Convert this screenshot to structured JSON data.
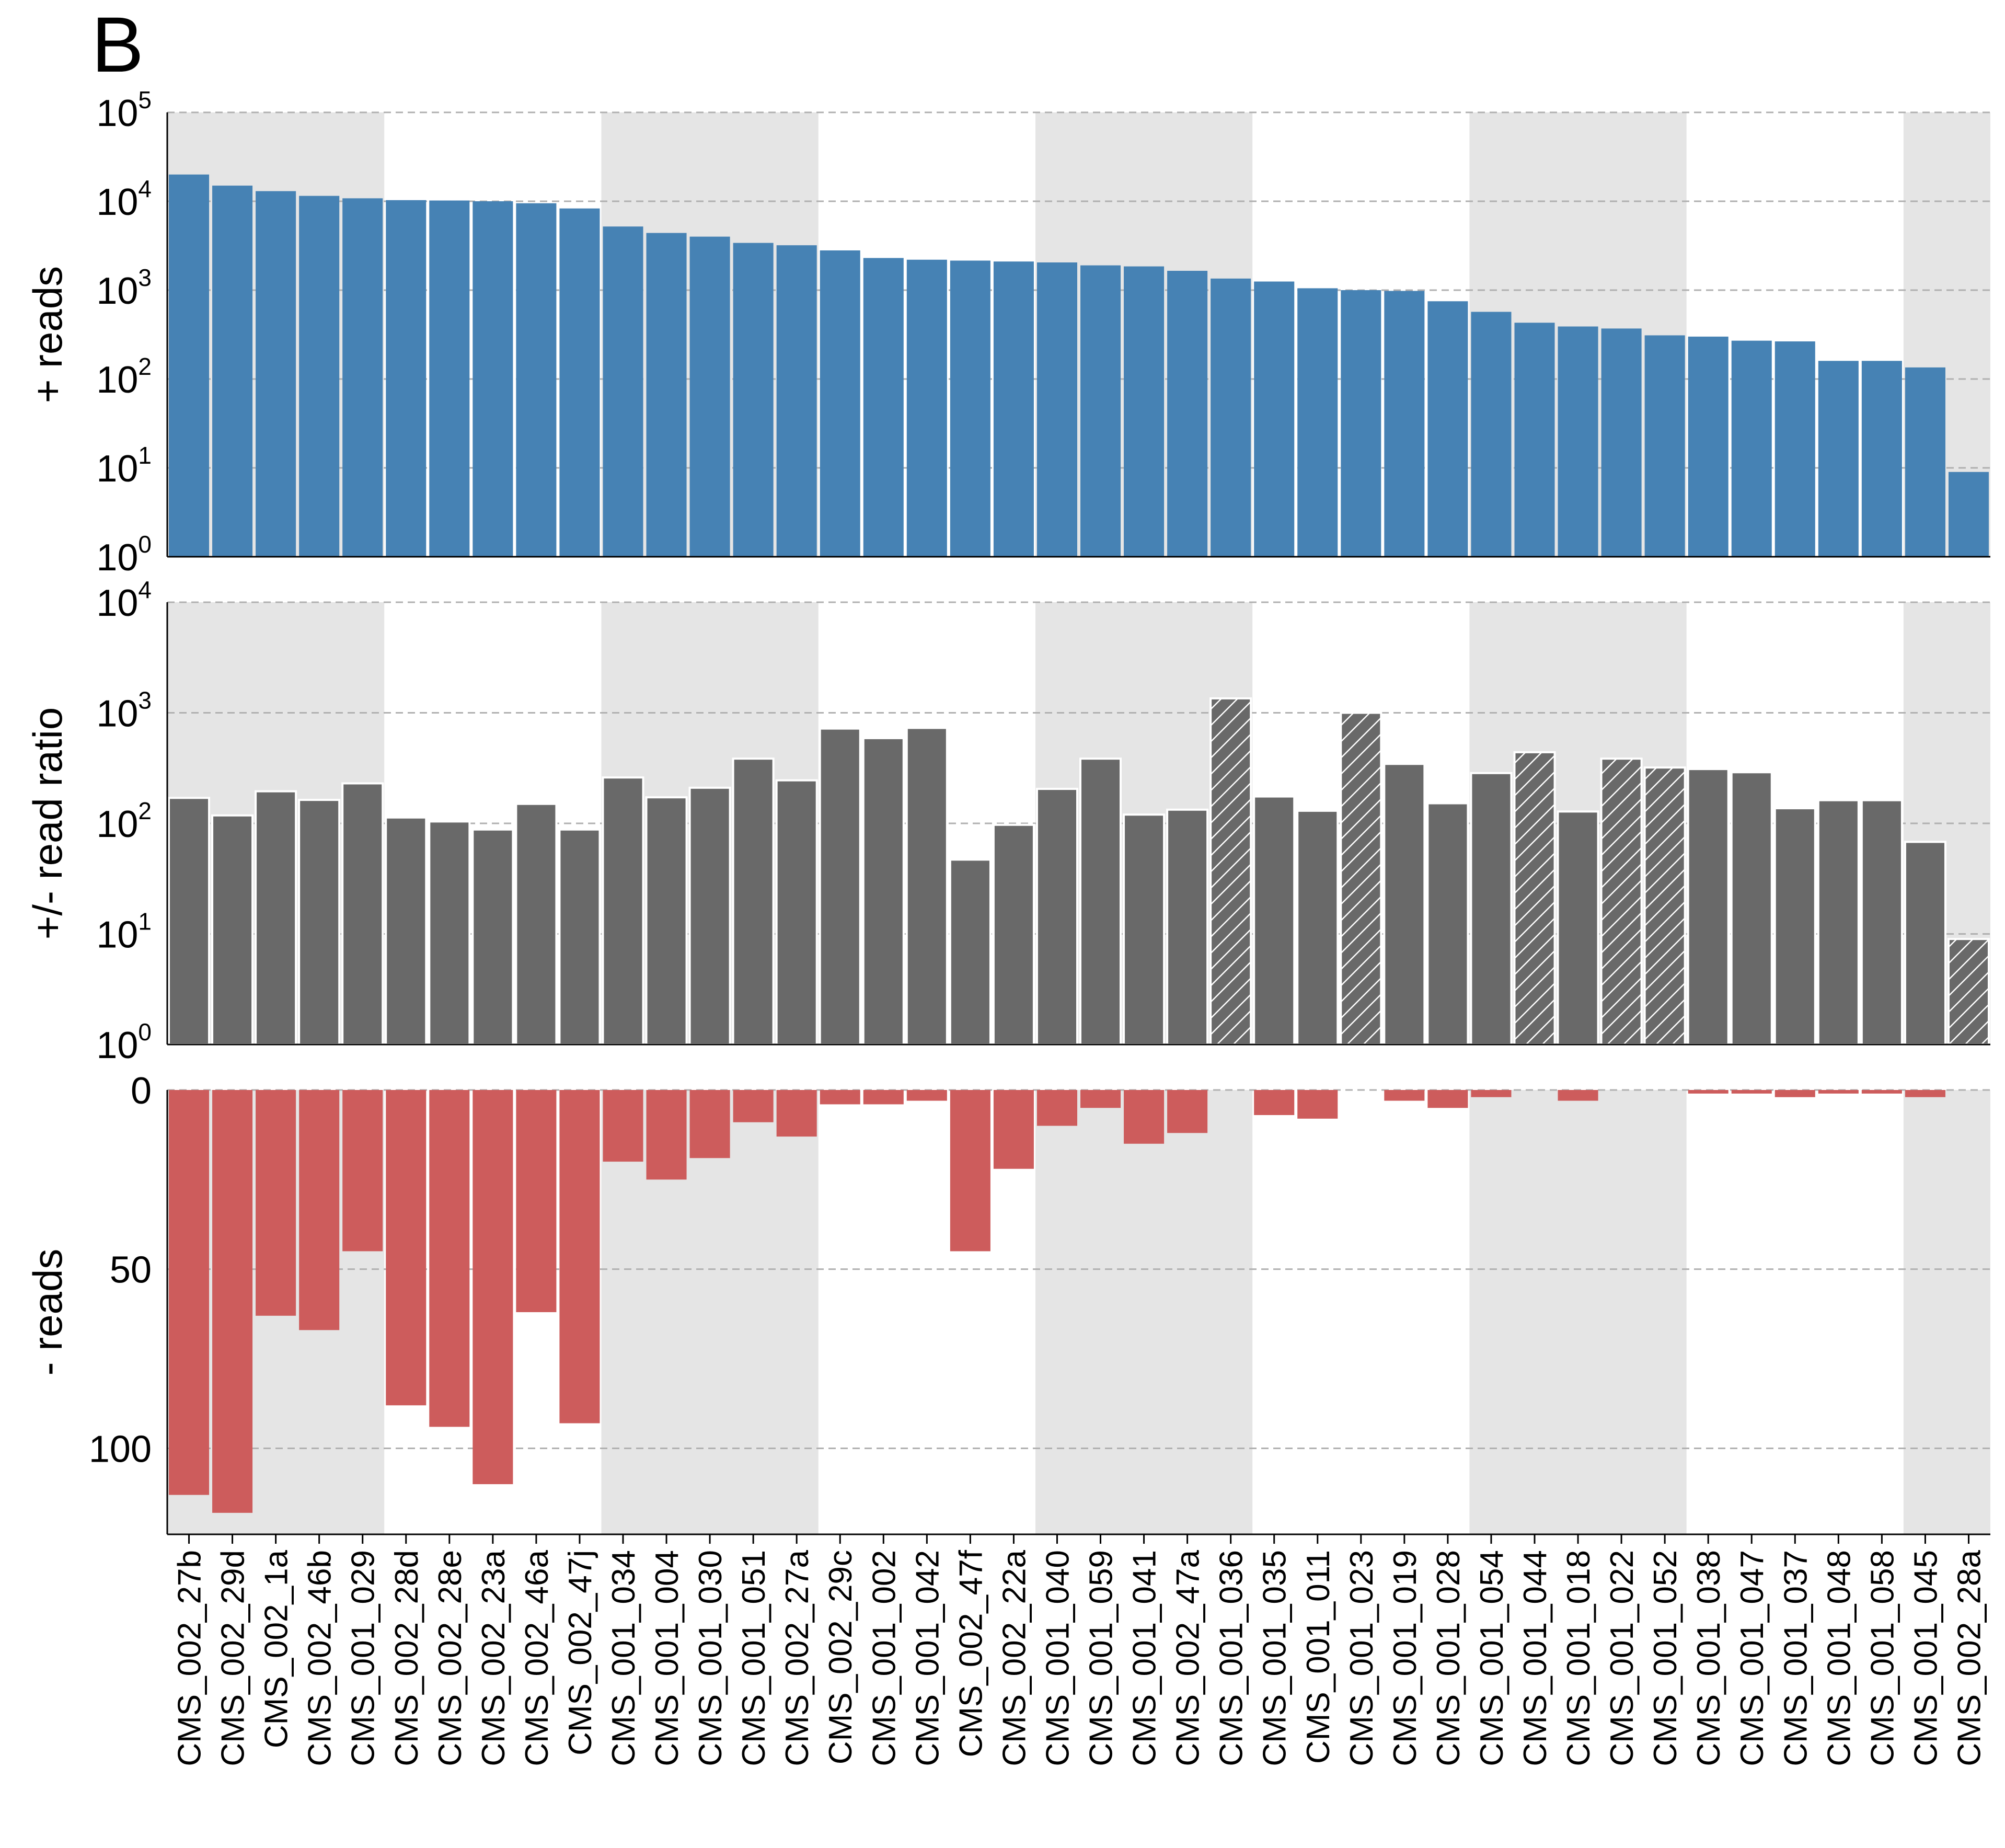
{
  "panel_label": "B",
  "colors": {
    "pos": "#4682b4",
    "ratio": "#696969",
    "neg": "#cd5c5c",
    "band": "#e5e5e5",
    "grid": "#b0b0b0"
  },
  "chart_data": [
    {
      "type": "bar",
      "ylabel": "+ reads",
      "yscale": "log",
      "ylim": [
        1,
        100000
      ],
      "ytick_base": "10",
      "ytick_exponents": [
        "0",
        "1",
        "2",
        "3",
        "4",
        "5"
      ],
      "grid": true,
      "categories": [
        "CMS_002_27b",
        "CMS_002_29d",
        "CMS_002_1a",
        "CMS_002_46b",
        "CMS_001_029",
        "CMS_002_28d",
        "CMS_002_28e",
        "CMS_002_23a",
        "CMS_002_46a",
        "CMS_002_47j",
        "CMS_001_034",
        "CMS_001_004",
        "CMS_001_030",
        "CMS_001_051",
        "CMS_002_27a",
        "CMS_002_29c",
        "CMS_001_002",
        "CMS_001_042",
        "CMS_002_47f",
        "CMS_002_22a",
        "CMS_001_040",
        "CMS_001_059",
        "CMS_001_041",
        "CMS_002_47a",
        "CMS_001_036",
        "CMS_001_035",
        "CMS_001_011",
        "CMS_001_023",
        "CMS_001_019",
        "CMS_001_028",
        "CMS_001_054",
        "CMS_001_044",
        "CMS_001_018",
        "CMS_001_022",
        "CMS_001_052",
        "CMS_001_038",
        "CMS_001_047",
        "CMS_001_037",
        "CMS_001_048",
        "CMS_001_058",
        "CMS_001_045",
        "CMS_002_28a"
      ],
      "values": [
        20000,
        15000,
        13000,
        11500,
        10800,
        10300,
        10200,
        10000,
        9500,
        8300,
        5200,
        4400,
        4000,
        3400,
        3200,
        2800,
        2300,
        2200,
        2150,
        2100,
        2050,
        1900,
        1850,
        1650,
        1350,
        1250,
        1050,
        1000,
        980,
        750,
        570,
        430,
        390,
        370,
        310,
        300,
        270,
        265,
        160,
        160,
        135,
        9
      ]
    },
    {
      "type": "bar",
      "ylabel": "+/- read ratio",
      "yscale": "log",
      "ylim": [
        1,
        10000
      ],
      "ytick_base": "10",
      "ytick_exponents": [
        "0",
        "1",
        "2",
        "3",
        "4"
      ],
      "grid": true,
      "note_hatched": "hatched bars have zero negative reads",
      "values": [
        170,
        118,
        195,
        163,
        230,
        113,
        104,
        88,
        150,
        88,
        260,
        172,
        210,
        385,
        245,
        720,
        590,
        730,
        47,
        97,
        205,
        385,
        120,
        133,
        1350,
        175,
        130,
        1000,
        345,
        152,
        285,
        440,
        128,
        385,
        320,
        310,
        290,
        137,
        162,
        162,
        68,
        9
      ],
      "hatched": [
        false,
        false,
        false,
        false,
        false,
        false,
        false,
        false,
        false,
        false,
        false,
        false,
        false,
        false,
        false,
        false,
        false,
        false,
        false,
        false,
        false,
        false,
        false,
        false,
        true,
        false,
        false,
        true,
        false,
        false,
        false,
        true,
        false,
        true,
        true,
        false,
        false,
        false,
        false,
        false,
        false,
        true
      ]
    },
    {
      "type": "bar",
      "ylabel": "- reads",
      "yscale": "linear",
      "ylim": [
        0,
        124
      ],
      "inverted": true,
      "yticks": [
        "0",
        "50",
        "100"
      ],
      "grid": true,
      "values": [
        113,
        118,
        63,
        67,
        45,
        88,
        94,
        110,
        62,
        93,
        20,
        25,
        19,
        9,
        13,
        4,
        4,
        3,
        45,
        22,
        10,
        5,
        15,
        12,
        0,
        7,
        8,
        0,
        3,
        5,
        2,
        0,
        3,
        0,
        0,
        1,
        1,
        2,
        1,
        1,
        2,
        0
      ]
    }
  ]
}
